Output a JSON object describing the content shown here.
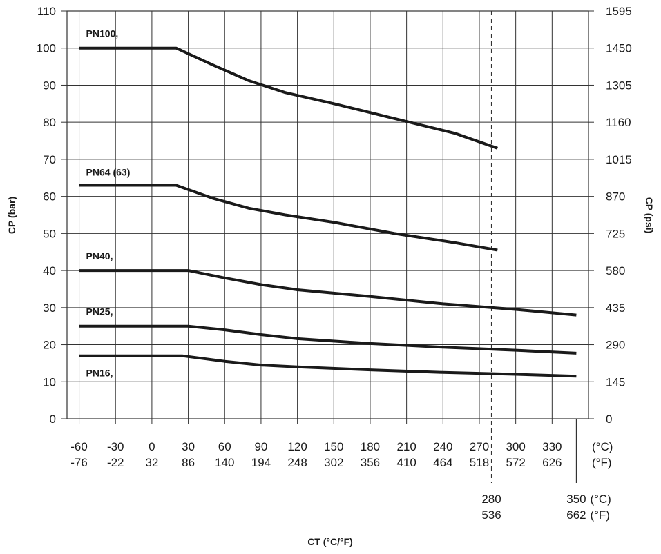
{
  "chart_data": {
    "type": "line",
    "xlabel": "CT (°C/°F)",
    "ylabel_left": "CP (bar)",
    "ylabel_right": "CP (psi)",
    "ylim": [
      0,
      110
    ],
    "xlim_celsius": [
      -70,
      360
    ],
    "grid": true,
    "y_ticks_left": [
      "0",
      "10",
      "20",
      "30",
      "40",
      "50",
      "60",
      "70",
      "80",
      "90",
      "100",
      "110"
    ],
    "y_ticks_right": [
      "0",
      "145",
      "290",
      "435",
      "580",
      "725",
      "870",
      "1015",
      "1160",
      "1305",
      "1450",
      "1595"
    ],
    "x_ticks_celsius": [
      "-60",
      "-30",
      "0",
      "30",
      "60",
      "90",
      "120",
      "150",
      "180",
      "210",
      "240",
      "270",
      "300",
      "330"
    ],
    "x_ticks_fahrenheit": [
      "-76",
      "-22",
      "32",
      "86",
      "140",
      "194",
      "248",
      "302",
      "356",
      "410",
      "464",
      "518",
      "572",
      "626"
    ],
    "unit_celsius": "(°C)",
    "unit_fahrenheit": "(°F)",
    "markers": [
      {
        "celsius": "280",
        "fahrenheit": "536",
        "style": "dashed"
      },
      {
        "celsius": "350",
        "fahrenheit": "662",
        "style": "solid",
        "unit_celsius": "(°C)",
        "unit_fahrenheit": "(°F)"
      }
    ],
    "series": [
      {
        "name": "PN100,",
        "x": [
          -60,
          20,
          50,
          80,
          110,
          150,
          200,
          250,
          285
        ],
        "y": [
          100,
          100,
          95.5,
          91.2,
          88,
          85,
          81,
          77,
          73
        ]
      },
      {
        "name": "PN64 (63)",
        "x": [
          -60,
          20,
          50,
          80,
          110,
          150,
          200,
          250,
          285
        ],
        "y": [
          63,
          63,
          59.5,
          56.8,
          55,
          53,
          50,
          47.5,
          45.5
        ]
      },
      {
        "name": "PN40,",
        "x": [
          -60,
          30,
          60,
          90,
          120,
          180,
          240,
          300,
          350
        ],
        "y": [
          40,
          40,
          38,
          36.2,
          34.8,
          33,
          31,
          29.5,
          28
        ]
      },
      {
        "name": "PN25,",
        "x": [
          -60,
          30,
          60,
          90,
          120,
          180,
          240,
          300,
          350
        ],
        "y": [
          25,
          25,
          24,
          22.7,
          21.6,
          20.3,
          19.3,
          18.5,
          17.7
        ]
      },
      {
        "name": "PN16,",
        "x": [
          -60,
          25,
          60,
          90,
          120,
          180,
          240,
          300,
          350
        ],
        "y": [
          17,
          17,
          15.5,
          14.5,
          14,
          13.2,
          12.5,
          12,
          11.5
        ]
      }
    ]
  }
}
